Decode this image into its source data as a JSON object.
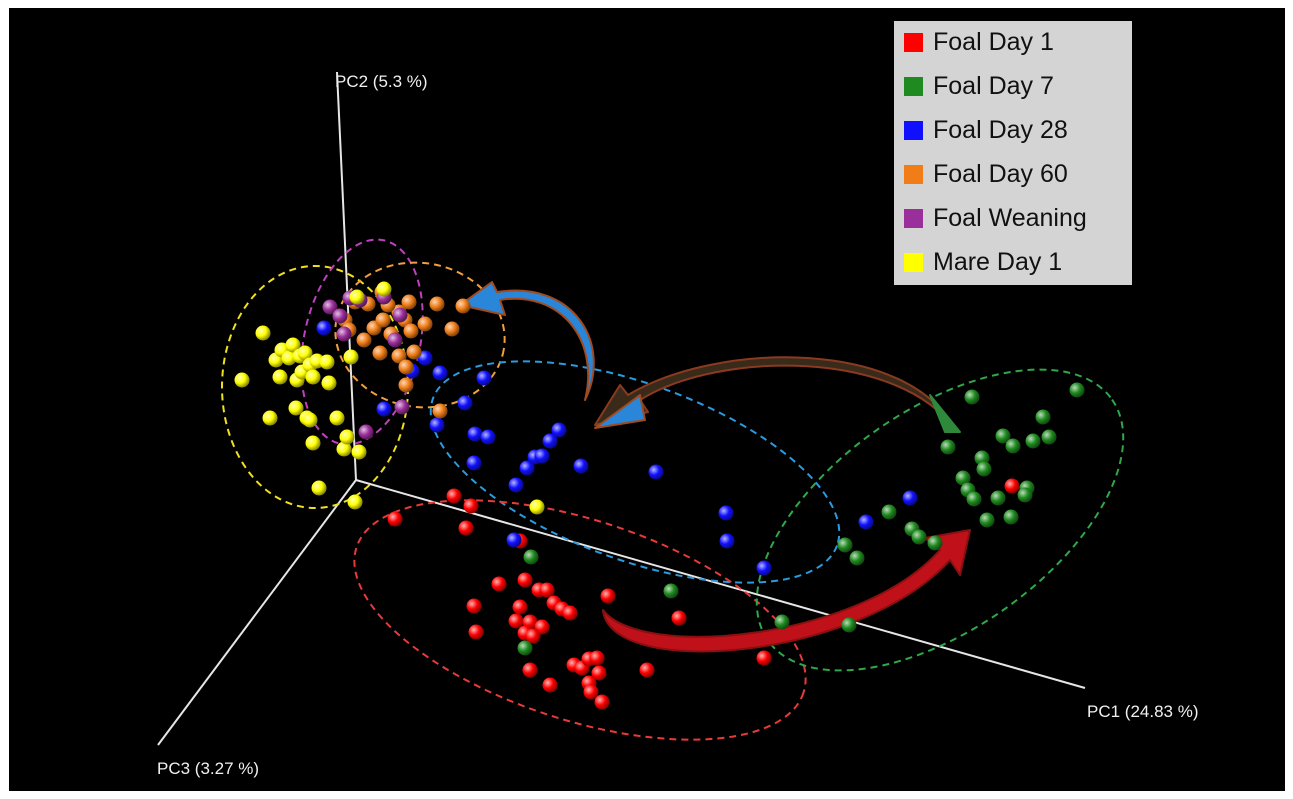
{
  "chart_data": {
    "type": "scatter",
    "projection": "3d-pcoa",
    "axes": {
      "pc1": "PC1 (24.83 %)",
      "pc2": "PC2 (5.3 %)",
      "pc3": "PC3 (3.27 %)"
    },
    "legend_position": "top-right",
    "grid": false,
    "background_color": "#000000",
    "series": [
      {
        "name": "Foal Day 1",
        "color": "#ff0000",
        "ellipse_color": "#e83a3a",
        "points": [
          [
            395,
            519
          ],
          [
            454,
            496
          ],
          [
            466,
            528
          ],
          [
            471,
            506
          ],
          [
            520,
            541
          ],
          [
            525,
            580
          ],
          [
            539,
            590
          ],
          [
            547,
            590
          ],
          [
            554,
            603
          ],
          [
            562,
            609
          ],
          [
            570,
            613
          ],
          [
            499,
            584
          ],
          [
            520,
            607
          ],
          [
            474,
            606
          ],
          [
            516,
            621
          ],
          [
            530,
            622
          ],
          [
            542,
            627
          ],
          [
            476,
            632
          ],
          [
            525,
            633
          ],
          [
            533,
            636
          ],
          [
            530,
            670
          ],
          [
            550,
            685
          ],
          [
            574,
            665
          ],
          [
            582,
            668
          ],
          [
            589,
            659
          ],
          [
            597,
            658
          ],
          [
            599,
            673
          ],
          [
            589,
            683
          ],
          [
            591,
            692
          ],
          [
            602,
            702
          ],
          [
            608,
            596
          ],
          [
            647,
            670
          ],
          [
            679,
            618
          ],
          [
            764,
            658
          ],
          [
            1012,
            486
          ]
        ]
      },
      {
        "name": "Foal Day 7",
        "color": "#1f8a1f",
        "ellipse_color": "#2ea84a",
        "points": [
          [
            531,
            557
          ],
          [
            525,
            648
          ],
          [
            671,
            591
          ],
          [
            782,
            622
          ],
          [
            849,
            625
          ],
          [
            845,
            545
          ],
          [
            857,
            558
          ],
          [
            889,
            512
          ],
          [
            912,
            529
          ],
          [
            919,
            537
          ],
          [
            935,
            543
          ],
          [
            948,
            447
          ],
          [
            972,
            397
          ],
          [
            982,
            458
          ],
          [
            984,
            469
          ],
          [
            1003,
            436
          ],
          [
            1013,
            446
          ],
          [
            1033,
            441
          ],
          [
            1043,
            417
          ],
          [
            1049,
            437
          ],
          [
            1077,
            390
          ],
          [
            963,
            478
          ],
          [
            968,
            490
          ],
          [
            974,
            499
          ],
          [
            987,
            520
          ],
          [
            998,
            498
          ],
          [
            1011,
            517
          ],
          [
            1027,
            488
          ],
          [
            1025,
            495
          ]
        ]
      },
      {
        "name": "Foal Day 28",
        "color": "#1010ff",
        "ellipse_color": "#2a9be0",
        "points": [
          [
            324,
            328
          ],
          [
            384,
            409
          ],
          [
            412,
            371
          ],
          [
            425,
            358
          ],
          [
            440,
            373
          ],
          [
            437,
            425
          ],
          [
            465,
            403
          ],
          [
            475,
            434
          ],
          [
            484,
            378
          ],
          [
            488,
            437
          ],
          [
            527,
            468
          ],
          [
            535,
            457
          ],
          [
            542,
            456
          ],
          [
            550,
            441
          ],
          [
            559,
            430
          ],
          [
            581,
            466
          ],
          [
            656,
            472
          ],
          [
            726,
            513
          ],
          [
            727,
            541
          ],
          [
            764,
            568
          ],
          [
            866,
            522
          ],
          [
            910,
            498
          ],
          [
            516,
            485
          ],
          [
            474,
            463
          ],
          [
            514,
            540
          ]
        ]
      },
      {
        "name": "Foal Day 60",
        "color": "#f07d18",
        "ellipse_color": "#f0a040",
        "points": [
          [
            345,
            320
          ],
          [
            349,
            330
          ],
          [
            355,
            302
          ],
          [
            364,
            340
          ],
          [
            368,
            304
          ],
          [
            374,
            328
          ],
          [
            382,
            292
          ],
          [
            383,
            320
          ],
          [
            391,
            334
          ],
          [
            399,
            312
          ],
          [
            405,
            320
          ],
          [
            411,
            331
          ],
          [
            425,
            324
          ],
          [
            437,
            304
          ],
          [
            452,
            329
          ],
          [
            463,
            306
          ],
          [
            399,
            356
          ],
          [
            406,
            367
          ],
          [
            414,
            352
          ],
          [
            406,
            385
          ],
          [
            409,
            302
          ],
          [
            440,
            411
          ],
          [
            380,
            353
          ],
          [
            388,
            305
          ]
        ]
      },
      {
        "name": "Foal Weaning",
        "color": "#9a2e9a",
        "ellipse_color": "#c040c0",
        "points": [
          [
            330,
            307
          ],
          [
            340,
            316
          ],
          [
            350,
            298
          ],
          [
            360,
            300
          ],
          [
            366,
            432
          ],
          [
            402,
            407
          ],
          [
            384,
            297
          ],
          [
            344,
            334
          ],
          [
            395,
            340
          ],
          [
            400,
            315
          ]
        ]
      },
      {
        "name": "Mare Day 1",
        "color": "#ffff00",
        "ellipse_color": "#f0e020",
        "points": [
          [
            242,
            380
          ],
          [
            263,
            333
          ],
          [
            270,
            418
          ],
          [
            276,
            360
          ],
          [
            280,
            377
          ],
          [
            282,
            350
          ],
          [
            289,
            358
          ],
          [
            293,
            345
          ],
          [
            297,
            380
          ],
          [
            300,
            356
          ],
          [
            302,
            372
          ],
          [
            305,
            353
          ],
          [
            310,
            365
          ],
          [
            313,
            377
          ],
          [
            317,
            361
          ],
          [
            327,
            362
          ],
          [
            329,
            383
          ],
          [
            296,
            408
          ],
          [
            307,
            418
          ],
          [
            310,
            420
          ],
          [
            313,
            443
          ],
          [
            319,
            488
          ],
          [
            337,
            418
          ],
          [
            344,
            449
          ],
          [
            347,
            437
          ],
          [
            359,
            452
          ],
          [
            355,
            502
          ],
          [
            351,
            357
          ],
          [
            384,
            289
          ],
          [
            357,
            297
          ],
          [
            537,
            507
          ]
        ]
      }
    ]
  },
  "legend": {
    "items": [
      {
        "label": "Foal Day 1",
        "color": "#ff0000"
      },
      {
        "label": "Foal Day 7",
        "color": "#1f8a1f"
      },
      {
        "label": "Foal Day 28",
        "color": "#1010ff"
      },
      {
        "label": "Foal Day 60",
        "color": "#f07d18"
      },
      {
        "label": "Foal Weaning",
        "color": "#9a2e9a"
      },
      {
        "label": "Mare Day 1",
        "color": "#ffff00"
      }
    ]
  }
}
